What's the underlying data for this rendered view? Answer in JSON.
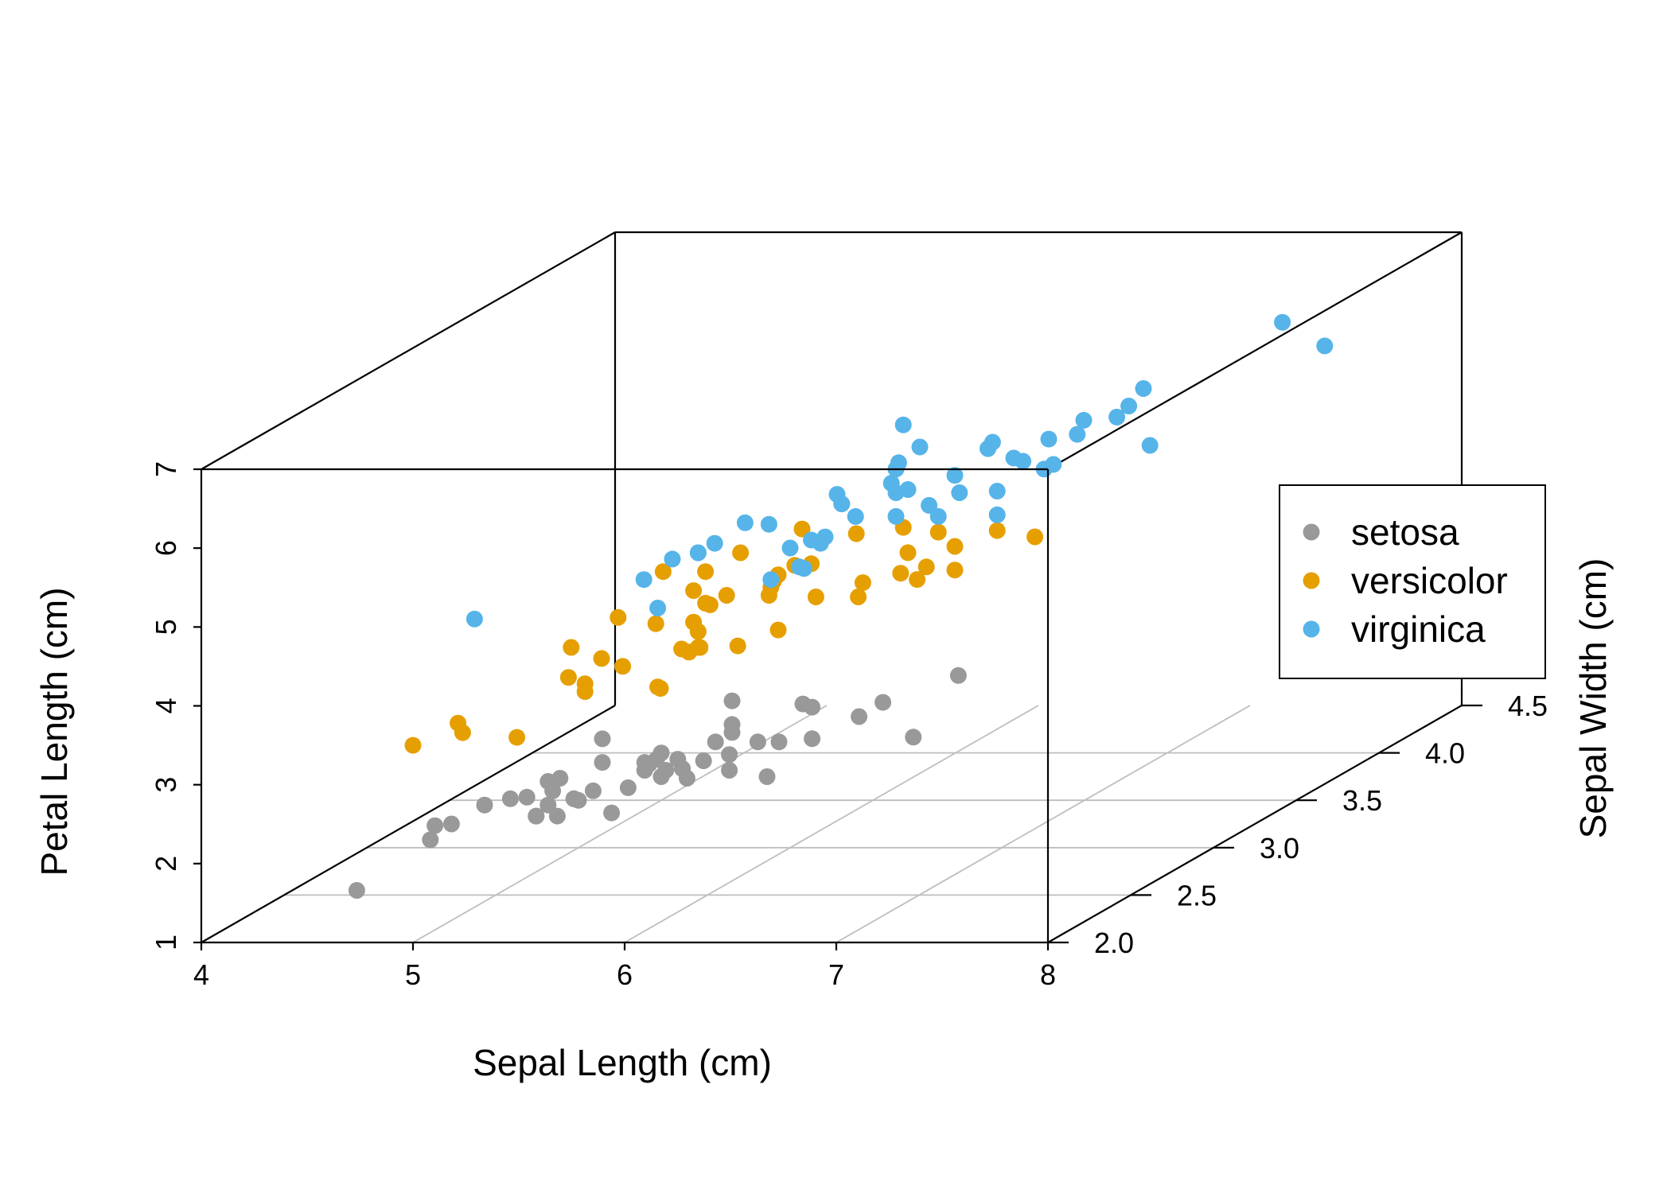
{
  "chart_data": {
    "type": "scatter",
    "title": "",
    "xlabel": "Sepal Length (cm)",
    "ylabel": "Sepal Width (cm)",
    "zlabel": "Petal Length (cm)",
    "xlim": [
      4,
      8
    ],
    "ylim": [
      2,
      4.5
    ],
    "zlim": [
      1,
      7
    ],
    "x_ticks": [
      "4",
      "5",
      "6",
      "7",
      "8"
    ],
    "y_ticks": [
      "2.0",
      "2.5",
      "3.0",
      "3.5",
      "4.0",
      "4.5"
    ],
    "z_ticks": [
      "1",
      "2",
      "3",
      "4",
      "5",
      "6",
      "7"
    ],
    "grid": "floor",
    "legend_position": "right",
    "series": [
      {
        "name": "setosa",
        "color": "#999999",
        "points": [
          [
            5.1,
            3.5,
            1.4
          ],
          [
            4.9,
            3.0,
            1.4
          ],
          [
            4.7,
            3.2,
            1.3
          ],
          [
            4.6,
            3.1,
            1.5
          ],
          [
            5.0,
            3.6,
            1.4
          ],
          [
            5.4,
            3.9,
            1.7
          ],
          [
            4.6,
            3.4,
            1.4
          ],
          [
            5.0,
            3.4,
            1.5
          ],
          [
            4.4,
            2.9,
            1.4
          ],
          [
            4.9,
            3.1,
            1.5
          ],
          [
            5.4,
            3.7,
            1.5
          ],
          [
            4.8,
            3.4,
            1.6
          ],
          [
            4.8,
            3.0,
            1.4
          ],
          [
            4.3,
            3.0,
            1.1
          ],
          [
            5.8,
            4.0,
            1.2
          ],
          [
            5.7,
            4.4,
            1.5
          ],
          [
            5.4,
            3.9,
            1.3
          ],
          [
            5.1,
            3.5,
            1.4
          ],
          [
            5.7,
            3.8,
            1.7
          ],
          [
            5.1,
            3.8,
            1.5
          ],
          [
            5.4,
            3.4,
            1.7
          ],
          [
            5.1,
            3.7,
            1.5
          ],
          [
            4.6,
            3.6,
            1.0
          ],
          [
            5.1,
            3.3,
            1.7
          ],
          [
            4.8,
            3.4,
            1.9
          ],
          [
            5.0,
            3.0,
            1.6
          ],
          [
            5.0,
            3.4,
            1.6
          ],
          [
            5.2,
            3.5,
            1.5
          ],
          [
            5.2,
            3.4,
            1.4
          ],
          [
            4.7,
            3.2,
            1.6
          ],
          [
            4.8,
            3.1,
            1.6
          ],
          [
            5.4,
            3.4,
            1.5
          ],
          [
            5.2,
            4.1,
            1.5
          ],
          [
            5.5,
            4.2,
            1.4
          ],
          [
            4.9,
            3.1,
            1.5
          ],
          [
            5.0,
            3.2,
            1.2
          ],
          [
            5.5,
            3.5,
            1.3
          ],
          [
            4.9,
            3.6,
            1.4
          ],
          [
            4.4,
            3.0,
            1.3
          ],
          [
            5.1,
            3.4,
            1.5
          ],
          [
            5.0,
            3.5,
            1.3
          ],
          [
            4.5,
            2.3,
            1.3
          ],
          [
            4.4,
            3.2,
            1.3
          ],
          [
            5.0,
            3.5,
            1.6
          ],
          [
            5.1,
            3.8,
            1.9
          ],
          [
            4.8,
            3.0,
            1.4
          ],
          [
            5.1,
            3.8,
            1.6
          ],
          [
            4.6,
            3.2,
            1.4
          ],
          [
            5.3,
            3.7,
            1.5
          ],
          [
            5.0,
            3.3,
            1.4
          ]
        ]
      },
      {
        "name": "versicolor",
        "color": "#E69F00",
        "points": [
          [
            7.0,
            3.2,
            4.7
          ],
          [
            6.4,
            3.2,
            4.5
          ],
          [
            6.9,
            3.1,
            4.9
          ],
          [
            5.5,
            2.3,
            4.0
          ],
          [
            6.5,
            2.8,
            4.6
          ],
          [
            5.7,
            2.8,
            4.5
          ],
          [
            6.3,
            3.3,
            4.7
          ],
          [
            4.9,
            2.4,
            3.3
          ],
          [
            6.6,
            2.9,
            4.6
          ],
          [
            5.2,
            2.7,
            3.9
          ],
          [
            5.0,
            2.0,
            3.5
          ],
          [
            5.9,
            3.0,
            4.2
          ],
          [
            6.0,
            2.2,
            4.0
          ],
          [
            6.1,
            2.9,
            4.7
          ],
          [
            5.6,
            2.9,
            3.6
          ],
          [
            6.7,
            3.1,
            4.4
          ],
          [
            5.6,
            3.0,
            4.5
          ],
          [
            5.8,
            2.7,
            4.1
          ],
          [
            6.2,
            2.2,
            4.5
          ],
          [
            5.6,
            2.5,
            3.9
          ],
          [
            5.9,
            3.2,
            4.8
          ],
          [
            6.1,
            2.8,
            4.0
          ],
          [
            6.3,
            2.5,
            4.9
          ],
          [
            6.1,
            2.8,
            4.7
          ],
          [
            6.4,
            2.9,
            4.3
          ],
          [
            6.6,
            3.0,
            4.4
          ],
          [
            6.8,
            2.8,
            4.8
          ],
          [
            6.7,
            3.0,
            5.0
          ],
          [
            6.0,
            2.9,
            4.5
          ],
          [
            5.7,
            2.6,
            3.5
          ],
          [
            5.5,
            2.4,
            3.8
          ],
          [
            5.5,
            2.4,
            3.7
          ],
          [
            5.8,
            2.7,
            3.9
          ],
          [
            6.0,
            2.7,
            5.1
          ],
          [
            5.4,
            3.0,
            4.5
          ],
          [
            6.0,
            3.4,
            4.5
          ],
          [
            6.7,
            3.1,
            4.7
          ],
          [
            6.3,
            2.3,
            4.4
          ],
          [
            5.6,
            3.0,
            4.1
          ],
          [
            5.5,
            2.5,
            4.0
          ],
          [
            5.5,
            2.6,
            4.4
          ],
          [
            6.1,
            3.0,
            4.6
          ],
          [
            5.8,
            2.6,
            4.0
          ],
          [
            5.0,
            2.3,
            3.3
          ],
          [
            5.6,
            2.7,
            4.2
          ],
          [
            5.7,
            3.0,
            4.2
          ],
          [
            5.7,
            2.9,
            4.2
          ],
          [
            6.2,
            2.9,
            4.3
          ],
          [
            5.1,
            2.5,
            3.0
          ],
          [
            5.7,
            2.8,
            4.1
          ]
        ]
      },
      {
        "name": "virginica",
        "color": "#56B4E9",
        "points": [
          [
            6.3,
            3.3,
            6.0
          ],
          [
            5.8,
            2.7,
            5.1
          ],
          [
            7.1,
            3.0,
            5.9
          ],
          [
            6.3,
            2.9,
            5.6
          ],
          [
            6.5,
            3.0,
            5.8
          ],
          [
            7.6,
            3.0,
            6.6
          ],
          [
            4.9,
            2.5,
            4.5
          ],
          [
            7.3,
            2.9,
            6.3
          ],
          [
            6.7,
            2.5,
            5.8
          ],
          [
            7.2,
            3.6,
            6.1
          ],
          [
            6.5,
            3.2,
            5.1
          ],
          [
            6.4,
            2.7,
            5.3
          ],
          [
            6.8,
            3.0,
            5.5
          ],
          [
            5.7,
            2.5,
            5.0
          ],
          [
            5.8,
            2.8,
            5.1
          ],
          [
            6.4,
            3.2,
            5.3
          ],
          [
            6.5,
            3.0,
            5.5
          ],
          [
            7.7,
            3.8,
            6.7
          ],
          [
            7.7,
            2.6,
            6.9
          ],
          [
            6.0,
            2.2,
            5.0
          ],
          [
            6.9,
            3.2,
            5.7
          ],
          [
            5.6,
            2.8,
            4.9
          ],
          [
            7.7,
            2.8,
            6.7
          ],
          [
            6.3,
            2.7,
            4.9
          ],
          [
            6.7,
            3.3,
            5.7
          ],
          [
            7.2,
            3.2,
            6.0
          ],
          [
            6.2,
            2.8,
            4.8
          ],
          [
            6.1,
            3.0,
            4.9
          ],
          [
            6.4,
            2.8,
            5.6
          ],
          [
            7.2,
            3.0,
            5.8
          ],
          [
            7.4,
            2.8,
            6.1
          ],
          [
            7.9,
            3.8,
            6.4
          ],
          [
            6.4,
            2.8,
            5.6
          ],
          [
            6.3,
            2.8,
            5.1
          ],
          [
            6.1,
            2.6,
            5.6
          ],
          [
            7.7,
            3.0,
            6.1
          ],
          [
            6.3,
            3.4,
            5.6
          ],
          [
            6.4,
            3.1,
            5.5
          ],
          [
            6.0,
            3.0,
            4.8
          ],
          [
            6.9,
            3.1,
            5.4
          ],
          [
            6.7,
            3.1,
            5.6
          ],
          [
            6.9,
            3.1,
            5.1
          ],
          [
            5.8,
            2.7,
            5.1
          ],
          [
            6.8,
            3.2,
            5.9
          ],
          [
            6.7,
            3.3,
            5.7
          ],
          [
            6.7,
            3.0,
            5.2
          ],
          [
            6.3,
            2.5,
            5.0
          ],
          [
            6.5,
            3.0,
            5.2
          ],
          [
            6.2,
            3.4,
            5.4
          ],
          [
            5.9,
            3.0,
            5.1
          ]
        ]
      }
    ]
  }
}
